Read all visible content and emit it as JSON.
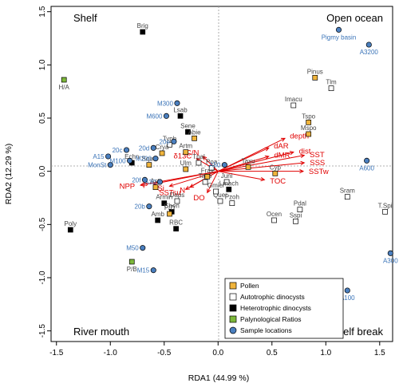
{
  "chart_data": {
    "type": "scatter",
    "xlabel": "RDA1 (44.99 %)",
    "ylabel": "RDA2 (12.29 %)",
    "xlim": [
      -1.55,
      1.62
    ],
    "ylim": [
      -1.6,
      1.55
    ],
    "xticks": [
      "-1.5",
      "-1.0",
      "-0.5",
      "0.0",
      "0.5",
      "1.0",
      "1.5"
    ],
    "yticks": [
      "-1.5",
      "-1.0",
      "-0.5",
      "0.0",
      "0.5",
      "1.0",
      "1.5"
    ],
    "corners": {
      "top_left": "Shelf",
      "top_right": "Open ocean",
      "bottom_left": "River mouth",
      "bottom_right": "Shelf break"
    },
    "colors": {
      "pollen": "#f0b43c",
      "autotrophic": "#ffffff",
      "heterotrophic": "#000000",
      "ratio": "#7db83a",
      "sample": "#4a7fbf",
      "sample_label": "#3b74b8",
      "env": "#e00000"
    },
    "legend": [
      {
        "key": "pollen",
        "label": "Pollen"
      },
      {
        "key": "autotrophic",
        "label": "Autotrophic dinocysts"
      },
      {
        "key": "heterotrophic",
        "label": "Heterotrophic dinocysts"
      },
      {
        "key": "ratio",
        "label": "Palynological Ratios"
      },
      {
        "key": "sample",
        "label": "Sample locations"
      }
    ],
    "pollen": [
      {
        "label": "Pinus",
        "x": 0.9,
        "y": 0.88
      },
      {
        "label": "Tspo",
        "x": 0.84,
        "y": 0.46
      },
      {
        "label": "Mspo",
        "x": 0.84,
        "y": 0.35
      },
      {
        "label": "Abie",
        "x": -0.22,
        "y": 0.31
      },
      {
        "label": "Cyp",
        "x": 0.53,
        "y": -0.02
      },
      {
        "label": "Taxu",
        "x": 0.28,
        "y": 0.04
      },
      {
        "label": "Frax",
        "x": -0.1,
        "y": -0.05
      },
      {
        "label": "Squa",
        "x": -0.64,
        "y": 0.06
      },
      {
        "label": "Crya",
        "x": -0.52,
        "y": 0.17
      },
      {
        "label": "Artm",
        "x": -0.3,
        "y": 0.18
      },
      {
        "label": "Astt",
        "x": -0.58,
        "y": -0.15
      },
      {
        "label": "P/D",
        "x": -0.45,
        "y": -0.4
      },
      {
        "label": "Ulm",
        "x": -0.3,
        "y": 0.02
      }
    ],
    "autotrophic": [
      {
        "label": "Tlm",
        "x": 1.05,
        "y": 0.78
      },
      {
        "label": "Imacu",
        "x": 0.7,
        "y": 0.62
      },
      {
        "label": "Sram",
        "x": 1.2,
        "y": -0.24
      },
      {
        "label": "T.Spi",
        "x": 1.55,
        "y": -0.38
      },
      {
        "label": "Pdal",
        "x": 0.76,
        "y": -0.36
      },
      {
        "label": "Sspi",
        "x": 0.72,
        "y": -0.47
      },
      {
        "label": "Ocen",
        "x": 0.52,
        "y": -0.46
      },
      {
        "label": "Pzoh",
        "x": 0.13,
        "y": -0.3
      },
      {
        "label": "Quer",
        "x": 0.02,
        "y": -0.28
      },
      {
        "label": "Gmicr",
        "x": -0.02,
        "y": -0.19
      },
      {
        "label": "Juni",
        "x": 0.08,
        "y": -0.1
      },
      {
        "label": "Taxo",
        "x": -0.12,
        "y": -0.1
      },
      {
        "label": "Daps",
        "x": -0.38,
        "y": -0.28
      },
      {
        "label": "Tpal",
        "x": -0.18,
        "y": 0.08
      },
      {
        "label": "Poa",
        "x": -0.06,
        "y": 0.03
      },
      {
        "label": "Typh",
        "x": -0.45,
        "y": 0.25
      }
    ],
    "heterotrophic": [
      {
        "label": "Brig",
        "x": -0.7,
        "y": 1.31
      },
      {
        "label": "Lsab",
        "x": -0.35,
        "y": 0.52
      },
      {
        "label": "Sene",
        "x": -0.28,
        "y": 0.37
      },
      {
        "label": "Poly",
        "x": -1.37,
        "y": -0.55
      },
      {
        "label": "Armin",
        "x": -0.5,
        "y": -0.3
      },
      {
        "label": "Chen",
        "x": -0.43,
        "y": -0.38
      },
      {
        "label": "Amb",
        "x": -0.56,
        "y": -0.46
      },
      {
        "label": "RBC",
        "x": -0.39,
        "y": -0.54
      },
      {
        "label": "Lmach",
        "x": 0.1,
        "y": -0.17
      },
      {
        "label": "Echn",
        "x": -0.8,
        "y": 0.08
      }
    ],
    "ratios": [
      {
        "label": "H/A",
        "x": -1.43,
        "y": 0.86
      },
      {
        "label": "P/B",
        "x": -0.8,
        "y": -0.85
      }
    ],
    "samples": [
      {
        "label": "Pigmy basin",
        "x": 1.12,
        "y": 1.33
      },
      {
        "label": "A3200",
        "x": 1.4,
        "y": 1.19
      },
      {
        "label": "A600",
        "x": 1.38,
        "y": 0.1
      },
      {
        "label": "A300",
        "x": 1.6,
        "y": -0.77
      },
      {
        "label": "A100",
        "x": 1.2,
        "y": -1.12
      },
      {
        "label": "80b",
        "x": 0.93,
        "y": -1.14
      },
      {
        "label": "M300",
        "x": -0.38,
        "y": 0.64
      },
      {
        "label": "M600",
        "x": -0.48,
        "y": 0.52
      },
      {
        "label": "20e",
        "x": -0.41,
        "y": 0.28
      },
      {
        "label": "20d",
        "x": -0.6,
        "y": 0.22
      },
      {
        "label": "20c",
        "x": -0.85,
        "y": 0.2
      },
      {
        "label": "A15",
        "x": -1.02,
        "y": 0.14
      },
      {
        "label": "MonSt",
        "x": -1.0,
        "y": 0.06
      },
      {
        "label": "M100",
        "x": -0.82,
        "y": 0.1
      },
      {
        "label": "M200",
        "x": -0.58,
        "y": 0.12
      },
      {
        "label": "20f",
        "x": -0.68,
        "y": -0.08
      },
      {
        "label": "A30",
        "x": -0.54,
        "y": -0.1
      },
      {
        "label": "A50",
        "x": 0.06,
        "y": 0.06
      },
      {
        "label": "20b",
        "x": -0.64,
        "y": -0.33
      },
      {
        "label": "M50",
        "x": -0.7,
        "y": -0.72
      },
      {
        "label": "M15",
        "x": -0.6,
        "y": -0.93
      }
    ],
    "env_vectors": [
      {
        "label": "depth",
        "x": 0.62,
        "y": 0.31
      },
      {
        "label": "dAR",
        "x": 0.47,
        "y": 0.22
      },
      {
        "label": "dist",
        "x": 0.7,
        "y": 0.18
      },
      {
        "label": "dMR",
        "x": 0.47,
        "y": 0.14
      },
      {
        "label": "SST",
        "x": 0.8,
        "y": 0.15
      },
      {
        "label": "SSS",
        "x": 0.8,
        "y": 0.08
      },
      {
        "label": "SSTw",
        "x": 0.79,
        "y": 0.0
      },
      {
        "label": "TOC",
        "x": 0.43,
        "y": -0.08
      },
      {
        "label": "C/N",
        "x": -0.14,
        "y": 0.14
      },
      {
        "label": "δ13C",
        "x": -0.2,
        "y": 0.12
      },
      {
        "label": "NPP",
        "x": -0.72,
        "y": -0.13
      },
      {
        "label": "P",
        "x": -0.6,
        "y": -0.12
      },
      {
        "label": "Si",
        "x": -0.45,
        "y": -0.14
      },
      {
        "label": "N",
        "x": -0.26,
        "y": -0.15
      },
      {
        "label": "SSTsu",
        "x": -0.3,
        "y": -0.17
      },
      {
        "label": "DO",
        "x": -0.1,
        "y": -0.2
      }
    ]
  }
}
